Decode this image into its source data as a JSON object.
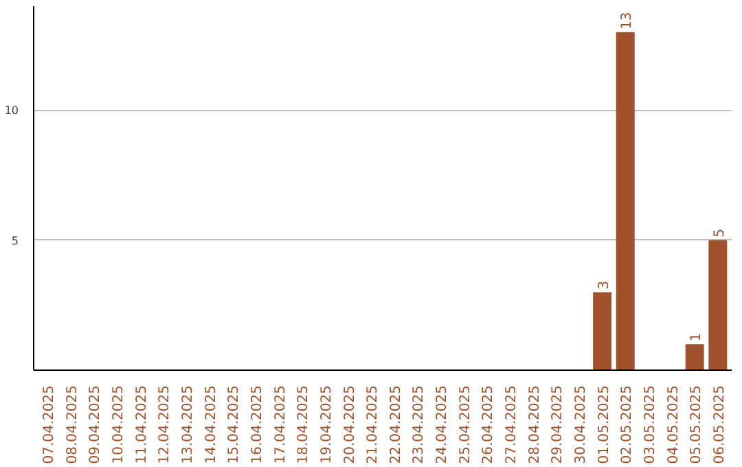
{
  "chart_data": {
    "type": "bar",
    "categories": [
      "07.04.2025",
      "08.04.2025",
      "09.04.2025",
      "10.04.2025",
      "11.04.2025",
      "12.04.2025",
      "13.04.2025",
      "14.04.2025",
      "15.04.2025",
      "16.04.2025",
      "17.04.2025",
      "18.04.2025",
      "19.04.2025",
      "20.04.2025",
      "21.04.2025",
      "22.04.2025",
      "23.04.2025",
      "24.04.2025",
      "25.04.2025",
      "26.04.2025",
      "27.04.2025",
      "28.04.2025",
      "29.04.2025",
      "30.04.2025",
      "01.05.2025",
      "02.05.2025",
      "03.05.2025",
      "04.05.2025",
      "05.05.2025",
      "06.05.2025"
    ],
    "values": [
      0,
      0,
      0,
      0,
      0,
      0,
      0,
      0,
      0,
      0,
      0,
      0,
      0,
      0,
      0,
      0,
      0,
      0,
      0,
      0,
      0,
      0,
      0,
      0,
      3,
      13,
      0,
      0,
      1,
      5
    ],
    "value_labels": [
      null,
      null,
      null,
      null,
      null,
      null,
      null,
      null,
      null,
      null,
      null,
      null,
      null,
      null,
      null,
      null,
      null,
      null,
      null,
      null,
      null,
      null,
      null,
      null,
      "3",
      "13",
      null,
      null,
      "1",
      "5"
    ],
    "color": "#a0522d",
    "ylim": [
      0,
      14
    ],
    "yticks": [
      5,
      10
    ],
    "grid": "y"
  }
}
